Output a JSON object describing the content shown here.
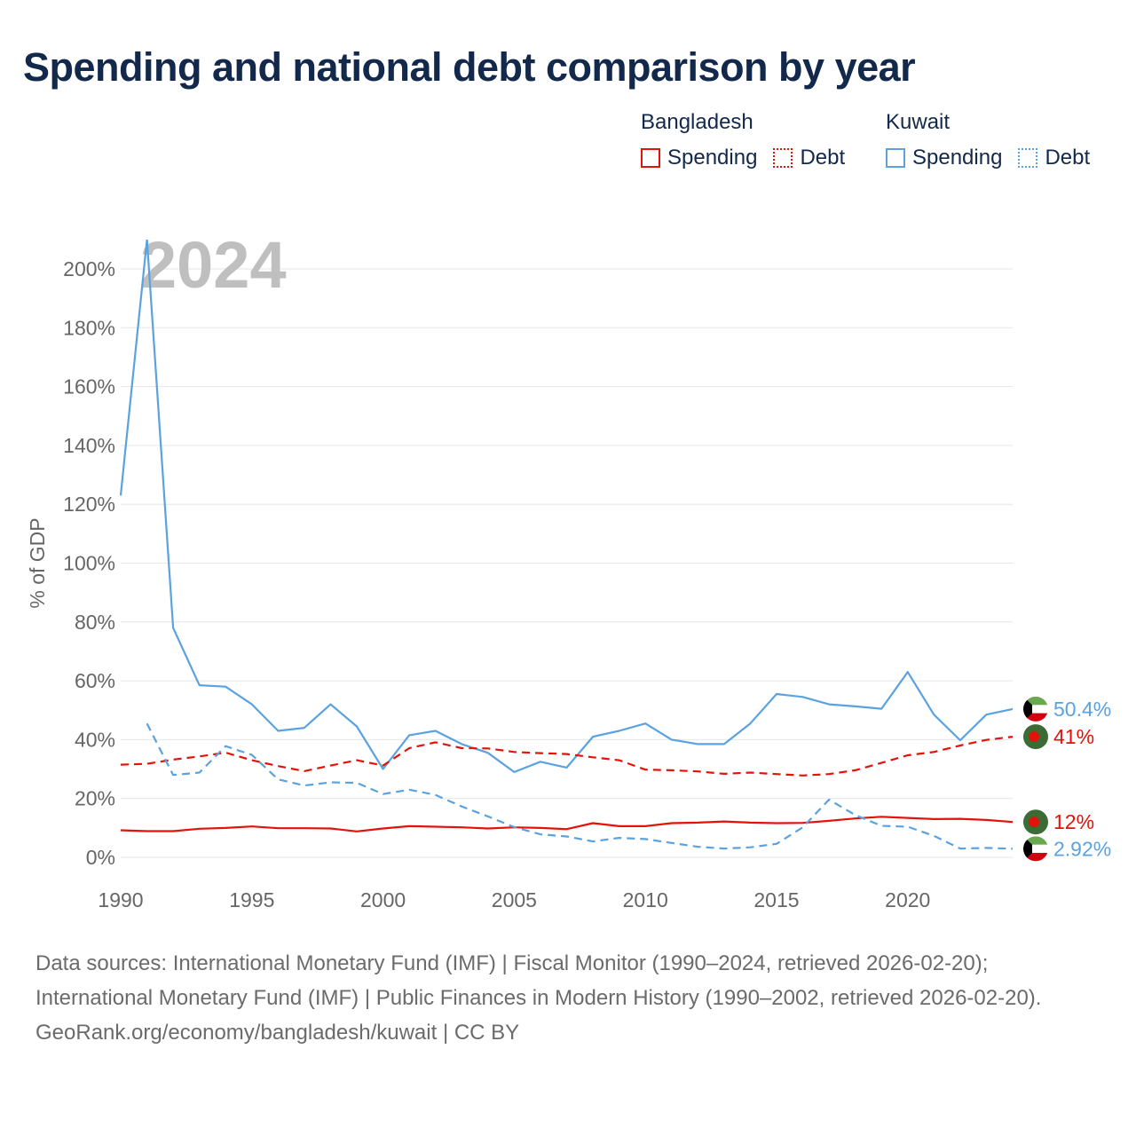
{
  "title": "Spending and national debt comparison by year",
  "legend": {
    "groups": [
      {
        "name": "Bangladesh",
        "color": "#e3120b",
        "items": [
          {
            "label": "Spending",
            "style": "solid"
          },
          {
            "label": "Debt",
            "style": "dotted"
          }
        ]
      },
      {
        "name": "Kuwait",
        "color": "#5aa2e0",
        "items": [
          {
            "label": "Spending",
            "style": "solid"
          },
          {
            "label": "Debt",
            "style": "dotted"
          }
        ]
      }
    ]
  },
  "colors": {
    "bangladesh": "#e3120b",
    "kuwait": "#5aa2e0",
    "grid": "#e6e6e6",
    "axis_text": "#666666",
    "year_overlay": "#bfbfbf",
    "flag_green": "#3d6b35"
  },
  "chart_data": {
    "type": "line",
    "year_overlay": "2024",
    "ylabel": "% of GDP",
    "xlabel": "",
    "xlim": [
      1990,
      2024
    ],
    "ylim": [
      0,
      200
    ],
    "x_ticks": [
      1990,
      1995,
      2000,
      2005,
      2010,
      2015,
      2020
    ],
    "y_ticks": [
      0,
      20,
      40,
      60,
      80,
      100,
      120,
      140,
      160,
      180,
      200
    ],
    "y_tick_labels": [
      "0%",
      "20%",
      "40%",
      "60%",
      "80%",
      "100%",
      "120%",
      "140%",
      "160%",
      "180%",
      "200%"
    ],
    "series": [
      {
        "name": "Kuwait Spending",
        "country": "kuwait",
        "style": "solid",
        "end_label": "50.4%",
        "x": [
          1990,
          1991,
          1992,
          1993,
          1994,
          1995,
          1996,
          1997,
          1998,
          1999,
          2000,
          2001,
          2002,
          2003,
          2004,
          2005,
          2006,
          2007,
          2008,
          2009,
          2010,
          2011,
          2012,
          2013,
          2014,
          2015,
          2016,
          2017,
          2018,
          2019,
          2020,
          2021,
          2022,
          2023,
          2024
        ],
        "y": [
          123,
          210,
          78,
          58.5,
          58,
          52,
          43,
          44,
          52,
          44.5,
          30,
          41.5,
          43,
          38.5,
          35.5,
          29,
          32.5,
          30.5,
          41,
          43,
          45.5,
          40,
          38.5,
          38.5,
          45.5,
          55.5,
          54.5,
          52,
          51.3,
          50.5,
          63,
          48.5,
          39.8,
          48.5,
          50.4
        ]
      },
      {
        "name": "Bangladesh Debt",
        "country": "bangladesh",
        "style": "dashed",
        "end_label": "41%",
        "x": [
          1990,
          1991,
          1992,
          1993,
          1994,
          1995,
          1996,
          1997,
          1998,
          1999,
          2000,
          2001,
          2002,
          2003,
          2004,
          2005,
          2006,
          2007,
          2008,
          2009,
          2010,
          2011,
          2012,
          2013,
          2014,
          2015,
          2016,
          2017,
          2018,
          2019,
          2020,
          2021,
          2022,
          2023,
          2024
        ],
        "y": [
          31.5,
          31.8,
          33.2,
          34.3,
          35.6,
          33,
          31,
          29.3,
          31.2,
          33,
          31.2,
          37.1,
          39.1,
          37.1,
          37,
          35.8,
          35.4,
          35.1,
          34,
          33,
          29.8,
          29.6,
          29.2,
          28.4,
          28.8,
          28.3,
          27.8,
          28.3,
          29.6,
          32.1,
          34.7,
          35.8,
          38,
          39.9,
          41
        ]
      },
      {
        "name": "Bangladesh Spending",
        "country": "bangladesh",
        "style": "solid",
        "end_label": "12%",
        "x": [
          1990,
          1991,
          1992,
          1993,
          1994,
          1995,
          1996,
          1997,
          1998,
          1999,
          2000,
          2001,
          2002,
          2003,
          2004,
          2005,
          2006,
          2007,
          2008,
          2009,
          2010,
          2011,
          2012,
          2013,
          2014,
          2015,
          2016,
          2017,
          2018,
          2019,
          2020,
          2021,
          2022,
          2023,
          2024
        ],
        "y": [
          9.2,
          8.9,
          8.9,
          9.7,
          10,
          10.5,
          9.9,
          9.9,
          9.8,
          8.8,
          9.8,
          10.6,
          10.4,
          10.2,
          9.8,
          10.2,
          10,
          9.6,
          11.6,
          10.6,
          10.6,
          11.6,
          11.8,
          12.2,
          11.8,
          11.6,
          11.7,
          12.4,
          13.2,
          13.8,
          13.4,
          13,
          13.1,
          12.7,
          12
        ]
      },
      {
        "name": "Kuwait Debt",
        "country": "kuwait",
        "style": "dashed",
        "end_label": "2.92%",
        "x": [
          1991,
          1992,
          1993,
          1994,
          1995,
          1996,
          1997,
          1998,
          1999,
          2000,
          2001,
          2002,
          2003,
          2004,
          2005,
          2006,
          2007,
          2008,
          2009,
          2010,
          2011,
          2012,
          2013,
          2014,
          2015,
          2016,
          2017,
          2018,
          2019,
          2020,
          2021,
          2022,
          2023,
          2024
        ],
        "y": [
          45.5,
          28,
          28.8,
          37.8,
          34.8,
          26.5,
          24.4,
          25.5,
          25.3,
          21.5,
          23,
          21.2,
          17.3,
          13.9,
          10.3,
          7.8,
          7.1,
          5.4,
          6.6,
          6.2,
          4.9,
          3.6,
          3,
          3.4,
          4.6,
          10.2,
          19.6,
          14.4,
          10.7,
          10.4,
          7.3,
          3,
          3.2,
          2.92
        ]
      }
    ],
    "end_markers": [
      {
        "series": "Kuwait Spending",
        "flag": "kuwait"
      },
      {
        "series": "Bangladesh Debt",
        "flag": "bangladesh"
      },
      {
        "series": "Bangladesh Spending",
        "flag": "bangladesh"
      },
      {
        "series": "Kuwait Debt",
        "flag": "kuwait"
      }
    ]
  },
  "footer": {
    "sources": "Data sources: International Monetary Fund (IMF) | Fiscal Monitor (1990–2024, retrieved 2026-02-20); International Monetary Fund (IMF) | Public Finances in Modern History (1990–2002, retrieved 2026-02-20).",
    "credit": "GeoRank.org/economy/bangladesh/kuwait | CC BY"
  }
}
